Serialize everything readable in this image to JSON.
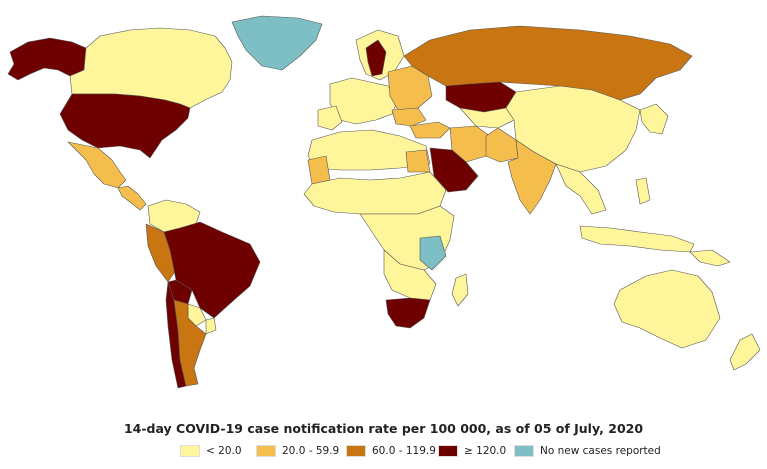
{
  "map": {
    "title": "14-day COVID-19 case notification rate per 100 000, as of 05 of July, 2020",
    "legend": [
      {
        "label": "< 20.0",
        "color": "#fff59a"
      },
      {
        "label": "20.0 - 59.9",
        "color": "#f5be4c"
      },
      {
        "label": "60.0 - 119.9",
        "color": "#c97612"
      },
      {
        "label": "≥ 120.0",
        "color": "#6e0000"
      },
      {
        "label": "No new cases reported",
        "color": "#7ebfc5"
      }
    ],
    "colors": {
      "lt20": "#fff59a",
      "c20_60": "#f5be4c",
      "c60_120": "#c97612",
      "ge120": "#6e0000",
      "none": "#7ebfc5"
    }
  }
}
